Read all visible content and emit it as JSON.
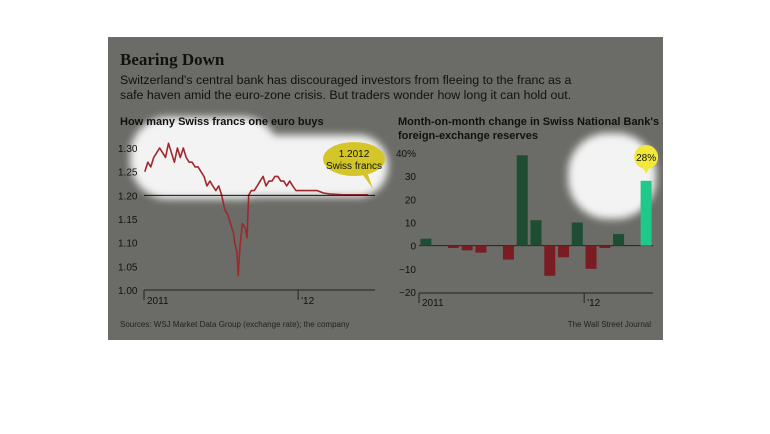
{
  "header": {
    "title": "Bearing Down",
    "subtitle_line1": "Switzerland's central bank has discouraged investors from fleeing to the franc as a",
    "subtitle_line2": "safe haven amid the euro-zone crisis. But traders wonder how long it can hold out."
  },
  "footer": {
    "sources": "Sources: WSJ Market Data Group (exchange rate); the company",
    "credit": "The Wall Street Journal"
  },
  "colors": {
    "panel_bg": "#6b6b67",
    "highlight": "#ffffff",
    "line": "#a0282d",
    "bar_pos": "#1e4d33",
    "bar_neg": "#7a1d22",
    "bar_last": "#1fc98a",
    "callout": "#d4c628"
  },
  "chart_data": [
    {
      "type": "line",
      "title": "How many Swiss francs one euro buys",
      "x_tick_labels": [
        "2011",
        "'12"
      ],
      "y_tick_labels": [
        "1.30",
        "1.25",
        "1.20",
        "1.15",
        "1.10",
        "1.05",
        "1.00"
      ],
      "ylim": [
        1.0,
        1.3
      ],
      "reference_line": 1.2,
      "annotation": {
        "line1": "1.2012",
        "line2": "Swiss francs",
        "value": 1.2012
      },
      "series": [
        {
          "x": [
            "2011-01-03",
            "2011-01-10",
            "2011-01-17",
            "2011-01-24",
            "2011-01-31",
            "2011-02-07",
            "2011-02-14",
            "2011-02-21",
            "2011-02-28",
            "2011-03-07",
            "2011-03-14",
            "2011-03-21",
            "2011-03-28",
            "2011-04-04",
            "2011-04-11",
            "2011-04-18",
            "2011-04-25",
            "2011-05-02",
            "2011-05-09",
            "2011-05-16",
            "2011-05-23",
            "2011-05-30",
            "2011-06-06",
            "2011-06-13",
            "2011-06-20",
            "2011-06-27",
            "2011-07-04",
            "2011-07-11",
            "2011-07-18",
            "2011-07-25",
            "2011-08-01",
            "2011-08-04",
            "2011-08-09",
            "2011-08-12",
            "2011-08-16",
            "2011-08-22",
            "2011-08-29",
            "2011-09-02",
            "2011-09-06",
            "2011-09-12",
            "2011-09-19",
            "2011-09-26",
            "2011-10-03",
            "2011-10-10",
            "2011-10-17",
            "2011-10-24",
            "2011-10-31",
            "2011-11-07",
            "2011-11-14",
            "2011-11-21",
            "2011-11-28",
            "2011-12-05",
            "2011-12-12",
            "2011-12-19",
            "2011-12-27",
            "2012-01-03",
            "2012-01-16",
            "2012-02-01",
            "2012-02-15",
            "2012-03-01",
            "2012-03-15",
            "2012-04-02",
            "2012-04-16",
            "2012-05-01",
            "2012-05-15",
            "2012-06-01",
            "2012-06-15"
          ],
          "values": [
            1.25,
            1.27,
            1.26,
            1.28,
            1.29,
            1.3,
            1.29,
            1.28,
            1.31,
            1.29,
            1.27,
            1.3,
            1.28,
            1.3,
            1.28,
            1.27,
            1.27,
            1.26,
            1.26,
            1.25,
            1.24,
            1.22,
            1.23,
            1.22,
            1.21,
            1.22,
            1.2,
            1.17,
            1.16,
            1.14,
            1.12,
            1.1,
            1.08,
            1.03,
            1.09,
            1.14,
            1.13,
            1.11,
            1.2,
            1.21,
            1.21,
            1.22,
            1.23,
            1.24,
            1.22,
            1.23,
            1.23,
            1.24,
            1.24,
            1.23,
            1.23,
            1.22,
            1.23,
            1.22,
            1.21,
            1.21,
            1.21,
            1.21,
            1.21,
            1.205,
            1.203,
            1.202,
            1.2012,
            1.2012,
            1.2012,
            1.2012,
            1.2012
          ]
        }
      ]
    },
    {
      "type": "bar",
      "title_line1": "Month-on-month change in Swiss National Bank's",
      "title_line2": "foreign-exchange reserves",
      "x_tick_labels": [
        "2011",
        "'12"
      ],
      "y_tick_labels": [
        "40%",
        "30",
        "20",
        "10",
        "0",
        "−10",
        "−20"
      ],
      "ylim": [
        -20,
        40
      ],
      "categories": [
        "2011-01",
        "2011-02",
        "2011-03",
        "2011-04",
        "2011-05",
        "2011-06",
        "2011-07",
        "2011-08",
        "2011-09",
        "2011-10",
        "2011-11",
        "2011-12",
        "2012-01",
        "2012-02",
        "2012-03",
        "2012-04",
        "2012-05"
      ],
      "values": [
        3,
        0,
        -1,
        -2,
        -3,
        0,
        -6,
        39,
        11,
        -13,
        -5,
        10,
        -10,
        -1,
        5,
        0,
        28
      ],
      "annotation": {
        "label": "28%",
        "value": 28
      }
    }
  ]
}
